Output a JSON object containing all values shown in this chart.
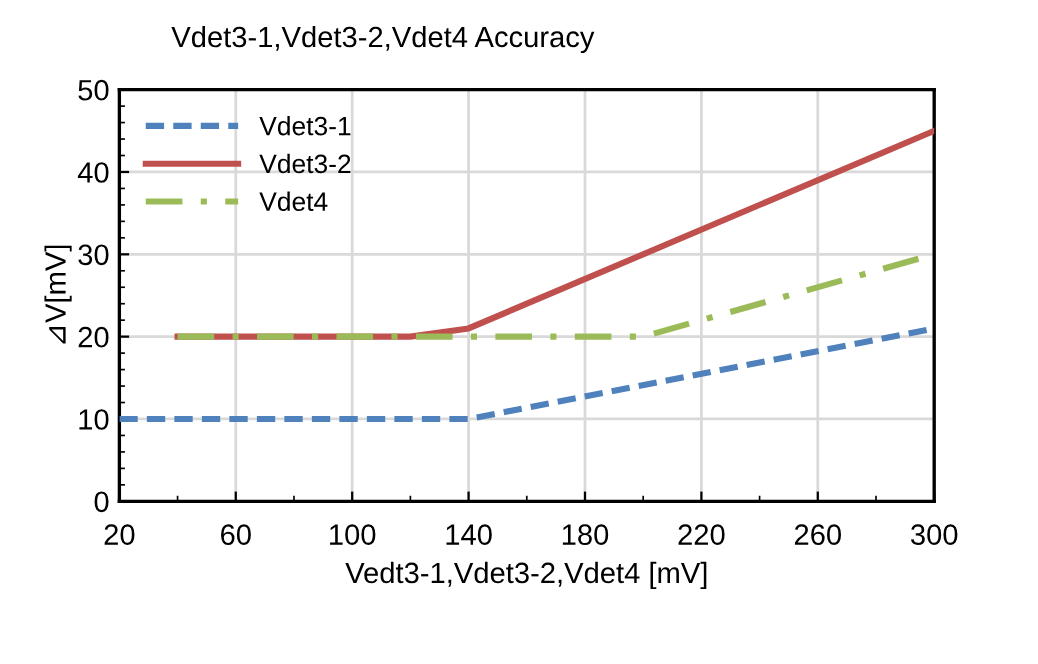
{
  "chart_data": {
    "type": "line",
    "title": "Vdet3-1,Vdet3-2,Vdet4 Accuracy",
    "xlabel": "Vedt3-1,Vdet3-2,Vdet4 [mV]",
    "ylabel": "⊿V[mV]",
    "xlim": [
      20,
      300
    ],
    "xticks": [
      20,
      60,
      100,
      140,
      180,
      220,
      260,
      300
    ],
    "ylim": [
      0,
      50
    ],
    "yticks": [
      0,
      10,
      20,
      30,
      40,
      50
    ],
    "grid": true,
    "legend": "top left",
    "marker": "none",
    "series": [
      {
        "name": "Vdet3-1",
        "color": "#4f81bd",
        "line_style": "dashed",
        "x": [
          20,
          140,
          300
        ],
        "values": [
          10,
          10,
          21
        ]
      },
      {
        "name": "Vdet3-2",
        "color": "#c0504d",
        "line_style": "solid",
        "x": [
          40,
          120,
          140,
          300
        ],
        "values": [
          20,
          20,
          21,
          45
        ]
      },
      {
        "name": "Vdet4",
        "color": "#9bbb59",
        "line_style": "dashdot",
        "x": [
          40,
          200,
          300
        ],
        "values": [
          20,
          20,
          30
        ]
      }
    ]
  }
}
